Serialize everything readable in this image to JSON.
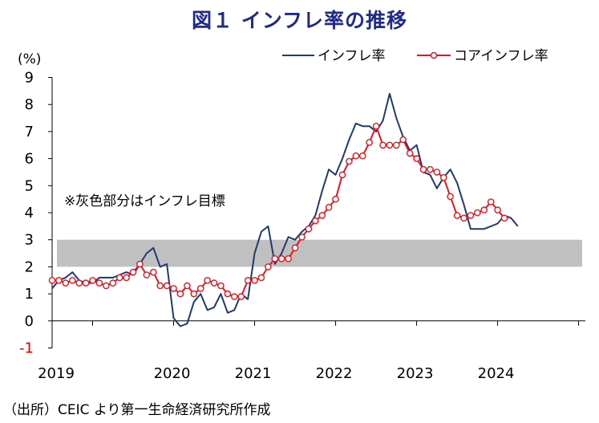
{
  "title": "図１ インフレ率の推移",
  "source": "（出所）CEIC より第一生命経済研究所作成",
  "chart_data": {
    "type": "line",
    "title": "図１ インフレ率の推移",
    "ylabel": "(%)",
    "xlabel": "",
    "ylim": [
      -1,
      9
    ],
    "yticks": [
      "9",
      "8",
      "7",
      "6",
      "5",
      "4",
      "3",
      "2",
      "1",
      "0",
      "-1"
    ],
    "xticks": [
      "2019",
      "2020",
      "2021",
      "2022",
      "2023",
      "2024"
    ],
    "xlim_months": [
      0,
      79
    ],
    "annotation": "※灰色部分はインフレ目標",
    "target_band": [
      2,
      3
    ],
    "legend_position": "top-right",
    "colors": {
      "inflation": "#1f3a6e",
      "core": "#e8141e",
      "band": "#c0c0c0",
      "title": "#1f2a8a"
    },
    "series": [
      {
        "name": "インフレ率",
        "marker": "none",
        "values": [
          1.2,
          1.5,
          1.6,
          1.8,
          1.5,
          1.4,
          1.4,
          1.6,
          1.6,
          1.6,
          1.7,
          1.8,
          1.7,
          2.1,
          2.5,
          2.7,
          2.0,
          2.1,
          0.1,
          -0.2,
          -0.1,
          0.7,
          1.0,
          0.4,
          0.5,
          1.0,
          0.3,
          0.4,
          1.0,
          0.8,
          2.5,
          3.3,
          3.5,
          2.1,
          2.5,
          3.1,
          3.0,
          3.3,
          3.5,
          3.9,
          4.8,
          5.6,
          5.4,
          6.0,
          6.7,
          7.3,
          7.2,
          7.2,
          7.0,
          7.4,
          8.4,
          7.5,
          6.8,
          6.3,
          6.5,
          5.5,
          5.4,
          4.9,
          5.3,
          5.6,
          5.1,
          4.3,
          3.4,
          3.4,
          3.4,
          3.5,
          3.6,
          3.9,
          3.8,
          3.5
        ]
      },
      {
        "name": "コアインフレ率",
        "marker": "circle",
        "values": [
          1.5,
          1.5,
          1.4,
          1.5,
          1.4,
          1.4,
          1.5,
          1.4,
          1.3,
          1.4,
          1.6,
          1.6,
          1.8,
          2.1,
          1.7,
          1.8,
          1.3,
          1.3,
          1.2,
          1.0,
          1.3,
          1.0,
          1.2,
          1.5,
          1.4,
          1.3,
          1.0,
          0.9,
          0.9,
          1.5,
          1.5,
          1.6,
          2.0,
          2.3,
          2.3,
          2.3,
          2.7,
          3.1,
          3.4,
          3.7,
          3.9,
          4.2,
          4.5,
          5.4,
          5.9,
          6.1,
          6.1,
          6.6,
          7.2,
          6.5,
          6.5,
          6.5,
          6.7,
          6.2,
          6.0,
          5.6,
          5.6,
          5.5,
          5.3,
          4.6,
          3.9,
          3.8,
          3.9,
          4.0,
          4.1,
          4.4,
          4.1,
          3.8
        ]
      }
    ]
  }
}
